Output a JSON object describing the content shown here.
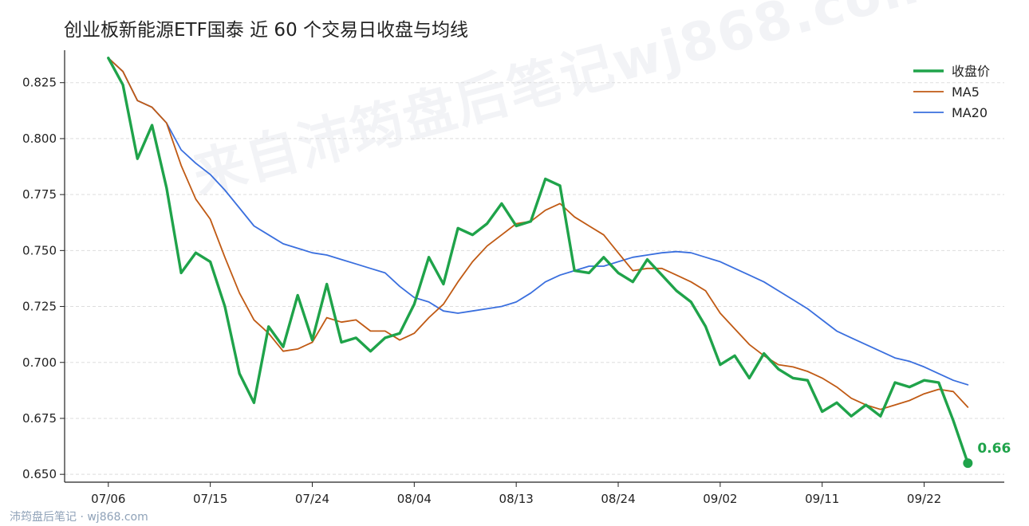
{
  "title": "创业板新能源ETF国泰 近 60 个交易日收盘与均线",
  "watermark": "来自沛筠盘后笔记wj868.com",
  "footer": "沛筠盘后笔记 · wj868.com",
  "chart_data": {
    "type": "line",
    "title": "创业板新能源ETF国泰 近 60 个交易日收盘与均线",
    "xlabel": "",
    "ylabel": "",
    "x_tick_labels": [
      "07/06",
      "07/15",
      "07/24",
      "08/04",
      "08/13",
      "08/24",
      "09/02",
      "09/11",
      "09/22"
    ],
    "x_tick_index": [
      0,
      7,
      14,
      21,
      28,
      35,
      42,
      49,
      56
    ],
    "y_ticks": [
      0.65,
      0.675,
      0.7,
      0.725,
      0.75,
      0.775,
      0.8,
      0.825
    ],
    "y_tick_labels": [
      "0.650",
      "0.675",
      "0.700",
      "0.725",
      "0.750",
      "0.775",
      "0.800",
      "0.825"
    ],
    "ylim": [
      0.6465,
      0.8395
    ],
    "xlim": [
      -3,
      61.5
    ],
    "grid": "horizontal dashed",
    "legend_position": "top-right",
    "last_value_label": "0.66",
    "colors": {
      "close": "#1fa34a",
      "ma5": "#c05a14",
      "ma20": "#3a6fde"
    },
    "series": [
      {
        "name": "收盘价",
        "values": [
          0.836,
          0.824,
          0.791,
          0.806,
          0.778,
          0.74,
          0.749,
          0.745,
          0.725,
          0.695,
          0.682,
          0.716,
          0.707,
          0.73,
          0.71,
          0.735,
          0.709,
          0.711,
          0.705,
          0.711,
          0.713,
          0.726,
          0.747,
          0.735,
          0.76,
          0.757,
          0.762,
          0.771,
          0.761,
          0.763,
          0.782,
          0.779,
          0.741,
          0.74,
          0.747,
          0.74,
          0.736,
          0.746,
          0.739,
          0.732,
          0.727,
          0.716,
          0.699,
          0.703,
          0.693,
          0.704,
          0.697,
          0.693,
          0.692,
          0.678,
          0.682,
          0.676,
          0.681,
          0.676,
          0.691,
          0.689,
          0.692,
          0.691,
          0.674,
          0.655
        ]
      },
      {
        "name": "MA5",
        "values": [
          0.836,
          0.83,
          0.817,
          0.814,
          0.807,
          0.788,
          0.773,
          0.764,
          0.747,
          0.731,
          0.719,
          0.713,
          0.705,
          0.706,
          0.709,
          0.72,
          0.718,
          0.719,
          0.714,
          0.714,
          0.71,
          0.713,
          0.72,
          0.726,
          0.736,
          0.745,
          0.752,
          0.757,
          0.762,
          0.763,
          0.768,
          0.771,
          0.765,
          0.761,
          0.757,
          0.749,
          0.741,
          0.742,
          0.742,
          0.739,
          0.736,
          0.732,
          0.722,
          0.715,
          0.708,
          0.703,
          0.699,
          0.698,
          0.696,
          0.693,
          0.689,
          0.684,
          0.681,
          0.679,
          0.681,
          0.683,
          0.686,
          0.688,
          0.687,
          0.68
        ]
      },
      {
        "name": "MA20",
        "values": [
          0.836,
          0.83,
          0.817,
          0.814,
          0.807,
          0.795,
          0.789,
          0.784,
          0.777,
          0.769,
          0.761,
          0.757,
          0.753,
          0.751,
          0.749,
          0.748,
          0.746,
          0.744,
          0.742,
          0.74,
          0.734,
          0.729,
          0.727,
          0.723,
          0.722,
          0.723,
          0.724,
          0.725,
          0.727,
          0.731,
          0.736,
          0.739,
          0.741,
          0.743,
          0.743,
          0.745,
          0.747,
          0.748,
          0.749,
          0.7495,
          0.749,
          0.747,
          0.745,
          0.742,
          0.739,
          0.736,
          0.732,
          0.728,
          0.724,
          0.719,
          0.714,
          0.711,
          0.708,
          0.705,
          0.702,
          0.7005,
          0.698,
          0.695,
          0.692,
          0.69
        ]
      }
    ]
  }
}
